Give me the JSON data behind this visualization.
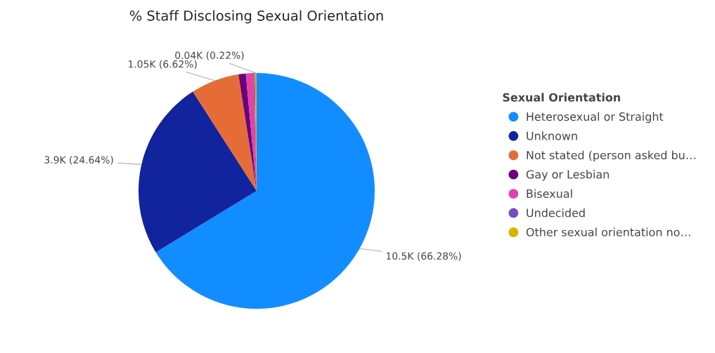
{
  "chart_data": {
    "type": "pie",
    "title": "% Staff Disclosing Sexual Orientation",
    "legend_title": "Sexual Orientation",
    "legend": "right",
    "categories": [
      "Heterosexual or Straight",
      "Unknown",
      "Not stated (person asked bu…",
      "Gay or Lesbian",
      "Bisexual",
      "Undecided",
      "Other sexual orientation no…"
    ],
    "values": [
      66.28,
      24.64,
      6.62,
      1.0,
      1.1,
      0.14,
      0.22
    ],
    "colors": [
      "#118dff",
      "#12239e",
      "#e66c37",
      "#6b007b",
      "#e044a7",
      "#744ec2",
      "#d9b300"
    ],
    "value_labels": [
      "10.5K (66.28%)",
      "3.9K (24.64%)",
      "1.05K (6.62%)",
      null,
      null,
      null,
      "0.04K (0.22%)"
    ]
  }
}
